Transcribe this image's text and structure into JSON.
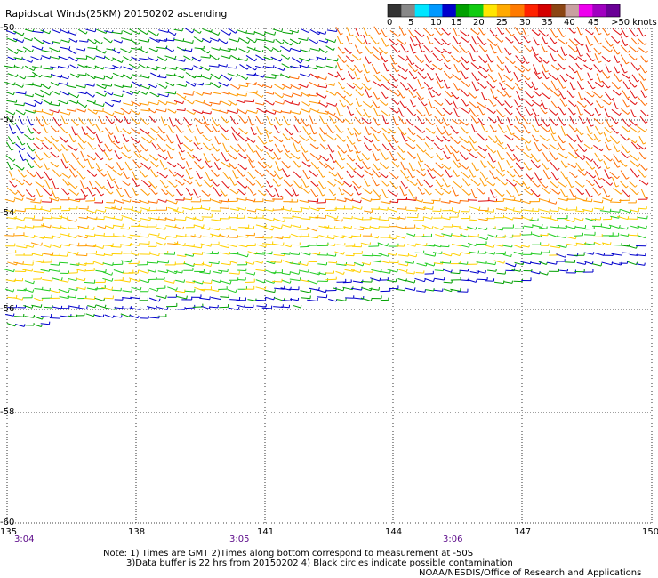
{
  "title": "Rapidscat Winds(25KM) 20150202 ascending",
  "colorbar": {
    "labels": [
      "0",
      "5",
      "10",
      "15",
      "20",
      "25",
      "30",
      "35",
      "40",
      "45",
      ">50 knots"
    ],
    "colors": [
      "#333333",
      "#888888",
      "#00e5ff",
      "#0099ff",
      "#0000cc",
      "#00a000",
      "#11cc11",
      "#ffe600",
      "#ffaa00",
      "#ff7a00",
      "#ff2200",
      "#d40000",
      "#8b4513",
      "#c8a0a0",
      "#ee00ee",
      "#a000c0",
      "#6a0096"
    ]
  },
  "map": {
    "lat_labels": [
      "-50",
      "-52",
      "-54",
      "-56",
      "-58",
      "-60"
    ],
    "lon_labels": [
      "135",
      "138",
      "141",
      "144",
      "147",
      "150"
    ],
    "time_labels": [
      "3:04",
      "3:05",
      "3:06"
    ]
  },
  "notes": {
    "line1": "Note: 1) Times are GMT 2)Times along bottom correspond to measurement at -50S",
    "line2": "3)Data buffer is 22 hrs from 20150202 4) Black circles indicate possible contamination",
    "credit": "NOAA/NESDIS/Office of Research and Applications"
  }
}
